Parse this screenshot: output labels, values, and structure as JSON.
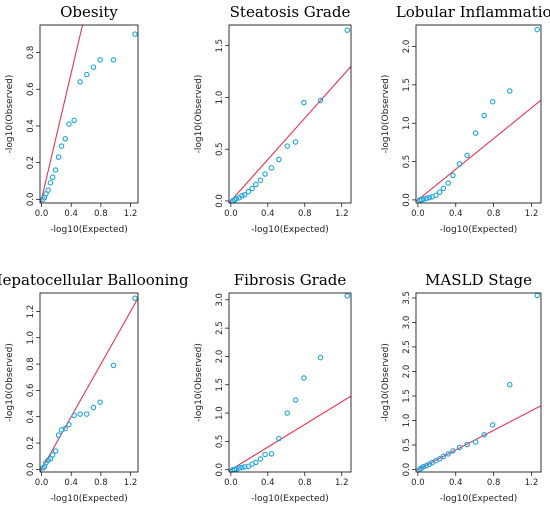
{
  "chart_data": [
    {
      "type": "scatter",
      "title": "Obesity",
      "xlabel": "-log10(Expected)",
      "ylabel": "-log10(Observed)",
      "xlim": [
        -0.02,
        1.3
      ],
      "ylim": [
        -0.02,
        0.95
      ],
      "xticks": [
        "0.0",
        "0.4",
        "0.8",
        "1.2"
      ],
      "xtick_values": [
        0,
        0.4,
        0.8,
        1.2
      ],
      "yticks": [
        "0.0",
        "0.2",
        "0.4",
        "0.6",
        "0.8"
      ],
      "ytick_values": [
        0,
        0.2,
        0.4,
        0.6,
        0.8
      ],
      "reference_line": {
        "slope": 1.72,
        "intercept": 0,
        "color": "#e8364f"
      },
      "points": {
        "x": [
          0.02,
          0.04,
          0.06,
          0.09,
          0.12,
          0.15,
          0.19,
          0.23,
          0.27,
          0.32,
          0.37,
          0.44,
          0.52,
          0.61,
          0.7,
          0.79,
          0.97,
          1.26
        ],
        "y": [
          0.0,
          0.01,
          0.03,
          0.05,
          0.09,
          0.12,
          0.16,
          0.23,
          0.29,
          0.33,
          0.41,
          0.43,
          0.64,
          0.68,
          0.72,
          0.76,
          0.76,
          0.9
        ]
      },
      "point_color": "#1aa3dd"
    },
    {
      "type": "scatter",
      "title": "Steatosis Grade",
      "xlabel": "-log10(Expected)",
      "ylabel": "-log10(Observed)",
      "xlim": [
        -0.02,
        1.3
      ],
      "ylim": [
        -0.02,
        1.7
      ],
      "xticks": [
        "0.0",
        "0.4",
        "0.8",
        "1.2"
      ],
      "xtick_values": [
        0,
        0.4,
        0.8,
        1.2
      ],
      "yticks": [
        "0.0",
        "0.5",
        "1.0",
        "1.5"
      ],
      "ytick_values": [
        0,
        0.5,
        1.0,
        1.5
      ],
      "reference_line": {
        "slope": 1.0,
        "intercept": 0,
        "color": "#e8364f"
      },
      "points": {
        "x": [
          0.02,
          0.04,
          0.06,
          0.09,
          0.12,
          0.15,
          0.19,
          0.23,
          0.27,
          0.32,
          0.37,
          0.44,
          0.52,
          0.61,
          0.7,
          0.79,
          0.97,
          1.26
        ],
        "y": [
          0.0,
          0.01,
          0.02,
          0.03,
          0.05,
          0.06,
          0.09,
          0.12,
          0.16,
          0.2,
          0.26,
          0.32,
          0.4,
          0.53,
          0.57,
          0.95,
          0.97,
          1.65
        ]
      },
      "point_color": "#1aa3dd"
    },
    {
      "type": "scatter",
      "title": "Lobular Inflammation",
      "xlabel": "-log10(Expected)",
      "ylabel": "-log10(Observed)",
      "xlim": [
        -0.02,
        1.3
      ],
      "ylim": [
        -0.04,
        2.28
      ],
      "xticks": [
        "0.0",
        "0.4",
        "0.8",
        "1.2"
      ],
      "xtick_values": [
        0,
        0.4,
        0.8,
        1.2
      ],
      "yticks": [
        "0.0",
        "0.5",
        "1.0",
        "1.5",
        "2.0"
      ],
      "ytick_values": [
        0,
        0.5,
        1.0,
        1.5,
        2.0
      ],
      "reference_line": {
        "slope": 1.0,
        "intercept": 0,
        "color": "#e8364f"
      },
      "points": {
        "x": [
          0.02,
          0.04,
          0.06,
          0.09,
          0.12,
          0.15,
          0.19,
          0.23,
          0.27,
          0.32,
          0.37,
          0.44,
          0.52,
          0.61,
          0.7,
          0.79,
          0.97,
          1.26
        ],
        "y": [
          0.0,
          0.0,
          0.01,
          0.02,
          0.03,
          0.04,
          0.06,
          0.1,
          0.15,
          0.22,
          0.32,
          0.47,
          0.58,
          0.87,
          1.1,
          1.28,
          1.42,
          2.22
        ]
      },
      "point_color": "#1aa3dd"
    },
    {
      "type": "scatter",
      "title": "Hepatocellular Ballooning",
      "xlabel": "-log10(Expected)",
      "ylabel": "-log10(Observed)",
      "xlim": [
        -0.02,
        1.3
      ],
      "ylim": [
        -0.02,
        1.34
      ],
      "xticks": [
        "0.0",
        "0.4",
        "0.8",
        "1.2"
      ],
      "xtick_values": [
        0,
        0.4,
        0.8,
        1.2
      ],
      "yticks": [
        "0.0",
        "0.2",
        "0.4",
        "0.6",
        "0.8",
        "1.0",
        "1.2"
      ],
      "ytick_values": [
        0,
        0.2,
        0.4,
        0.6,
        0.8,
        1.0,
        1.2
      ],
      "reference_line": {
        "slope": 1.0,
        "intercept": 0,
        "color": "#e8364f"
      },
      "points": {
        "x": [
          0.02,
          0.04,
          0.06,
          0.09,
          0.12,
          0.15,
          0.19,
          0.23,
          0.27,
          0.32,
          0.37,
          0.44,
          0.52,
          0.61,
          0.7,
          0.79,
          0.97,
          1.26
        ],
        "y": [
          0.01,
          0.02,
          0.05,
          0.07,
          0.08,
          0.11,
          0.14,
          0.26,
          0.3,
          0.31,
          0.34,
          0.41,
          0.42,
          0.42,
          0.47,
          0.51,
          0.79,
          1.3
        ]
      },
      "point_color": "#1aa3dd"
    },
    {
      "type": "scatter",
      "title": "Fibrosis Grade",
      "xlabel": "-log10(Expected)",
      "ylabel": "-log10(Observed)",
      "xlim": [
        -0.02,
        1.3
      ],
      "ylim": [
        -0.04,
        3.12
      ],
      "xticks": [
        "0.0",
        "0.4",
        "0.8",
        "1.2"
      ],
      "xtick_values": [
        0,
        0.4,
        0.8,
        1.2
      ],
      "yticks": [
        "0.0",
        "0.5",
        "1.0",
        "1.5",
        "2.0",
        "2.5",
        "3.0"
      ],
      "ytick_values": [
        0,
        0.5,
        1.0,
        1.5,
        2.0,
        2.5,
        3.0
      ],
      "reference_line": {
        "slope": 1.0,
        "intercept": 0,
        "color": "#e8364f"
      },
      "points": {
        "x": [
          0.02,
          0.04,
          0.06,
          0.09,
          0.12,
          0.15,
          0.19,
          0.23,
          0.27,
          0.32,
          0.37,
          0.44,
          0.52,
          0.61,
          0.7,
          0.79,
          0.97,
          1.26
        ],
        "y": [
          0.0,
          0.0,
          0.01,
          0.03,
          0.04,
          0.05,
          0.06,
          0.1,
          0.13,
          0.19,
          0.27,
          0.28,
          0.55,
          1.0,
          1.23,
          1.62,
          1.98,
          3.07
        ]
      },
      "point_color": "#1aa3dd"
    },
    {
      "type": "scatter",
      "title": "MASLD Stage",
      "xlabel": "-log10(Expected)",
      "ylabel": "-log10(Observed)",
      "xlim": [
        -0.02,
        1.3
      ],
      "ylim": [
        -0.05,
        3.6
      ],
      "xticks": [
        "0.0",
        "0.4",
        "0.8",
        "1.2"
      ],
      "xtick_values": [
        0,
        0.4,
        0.8,
        1.2
      ],
      "yticks": [
        "0.0",
        "0.5",
        "1.0",
        "1.5",
        "2.0",
        "2.5",
        "3.0",
        "3.5"
      ],
      "ytick_values": [
        0,
        0.5,
        1.0,
        1.5,
        2.0,
        2.5,
        3.0,
        3.5
      ],
      "reference_line": {
        "slope": 1.0,
        "intercept": 0,
        "color": "#e8364f"
      },
      "points": {
        "x": [
          0.02,
          0.04,
          0.06,
          0.09,
          0.12,
          0.15,
          0.19,
          0.23,
          0.27,
          0.32,
          0.37,
          0.44,
          0.52,
          0.61,
          0.7,
          0.79,
          0.97,
          1.26
        ],
        "y": [
          0.01,
          0.03,
          0.06,
          0.08,
          0.11,
          0.14,
          0.18,
          0.22,
          0.27,
          0.32,
          0.38,
          0.45,
          0.51,
          0.56,
          0.71,
          0.91,
          1.73,
          3.55
        ]
      },
      "point_color": "#1aa3dd"
    }
  ]
}
